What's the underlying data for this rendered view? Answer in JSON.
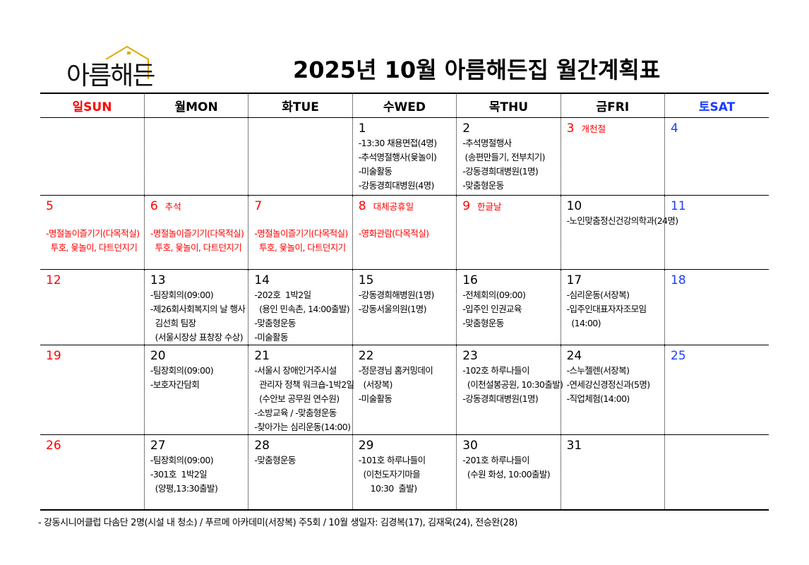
{
  "logo": {
    "text": "아름해든",
    "roof_color": "#e0a800"
  },
  "title": "2025년 10월 아름해든집 월간계획표",
  "colors": {
    "holiday": "#ff0000",
    "saturday": "#1a3cff",
    "normal": "#000000"
  },
  "weekdays": [
    {
      "label": "일SUN",
      "color": "red"
    },
    {
      "label": "월MON",
      "color": ""
    },
    {
      "label": "화TUE",
      "color": ""
    },
    {
      "label": "수WED",
      "color": ""
    },
    {
      "label": "목THU",
      "color": ""
    },
    {
      "label": "금FRI",
      "color": ""
    },
    {
      "label": "토SAT",
      "color": "blue"
    }
  ],
  "weeks": [
    [
      {
        "day": "",
        "events": []
      },
      {
        "day": "",
        "events": []
      },
      {
        "day": "",
        "events": []
      },
      {
        "day": "1",
        "events": [
          "-13:30 채용면접(4명)",
          "-추석명절행사(윷놀이)",
          "-미술활동",
          "-강동경희대병원(4명)"
        ]
      },
      {
        "day": "2",
        "events": [
          "-추석명절행사",
          " (송편만들기, 전부치기)",
          "-강동경희대병원(1명)",
          "-맞춤형운동"
        ]
      },
      {
        "day": "3",
        "note": "개천절",
        "color": "red",
        "events": []
      },
      {
        "day": "4",
        "color": "blue",
        "events": []
      }
    ],
    [
      {
        "day": "5",
        "color": "red",
        "gap": true,
        "events": [
          "-명절놀이즐기기(다목적실)",
          "  투호, 윷놀이, 다트던지기"
        ]
      },
      {
        "day": "6",
        "note": "추석",
        "color": "red",
        "gap": true,
        "events": [
          "-명절놀이즐기기(다목적실)",
          "  투호, 윷놀이, 다트던지기"
        ]
      },
      {
        "day": "7",
        "color": "red",
        "gap": true,
        "events": [
          "-명절놀이즐기기(다목적실)",
          "  투호, 윷놀이, 다트던지기"
        ]
      },
      {
        "day": "8",
        "note": "대체공휴일",
        "color": "red",
        "gap": true,
        "events": [
          "-영화관람(다목적실)"
        ]
      },
      {
        "day": "9",
        "note": "한글날",
        "color": "red",
        "events": []
      },
      {
        "day": "10",
        "events": [
          "-노인맞춤정신건강의학과(24명)"
        ]
      },
      {
        "day": "11",
        "color": "blue",
        "events": []
      }
    ],
    [
      {
        "day": "12",
        "color": "red",
        "events": []
      },
      {
        "day": "13",
        "events": [
          "-팀장회의(09:00)",
          "-제26회사회복지의 날 행사",
          "  김선희 팀장",
          "  (서울시장상 표창장 수상)"
        ]
      },
      {
        "day": "14",
        "events": [
          "-202호  1박2일",
          "  (용인 민속촌, 14:00출발)",
          "-맞춤형운동",
          "-미술활동"
        ]
      },
      {
        "day": "15",
        "events": [
          "-강동경희해병원(1명)",
          "-강동서울의원(1명)"
        ]
      },
      {
        "day": "16",
        "events": [
          "-전체회의(09:00)",
          "-입주인 인권교육",
          "-맞춤형운동"
        ]
      },
      {
        "day": "17",
        "events": [
          "-심리운동(서장복)",
          "-입주인대표자자조모임",
          "  (14:00)"
        ]
      },
      {
        "day": "18",
        "color": "blue",
        "events": []
      }
    ],
    [
      {
        "day": "19",
        "color": "red",
        "events": []
      },
      {
        "day": "20",
        "events": [
          "-팀장회의(09:00)",
          "-보호자간담회"
        ]
      },
      {
        "day": "21",
        "events": [
          "-서울시 장애인거주시설",
          "  관리자 정책 워크숍-1박2일",
          "  (수안보 공무원 연수원)",
          "-소방교육 / -맞춤형운동",
          "-찾아가는 심리운동(14:00)"
        ]
      },
      {
        "day": "22",
        "events": [
          "-정문경님 홈커밍데이",
          "  (서장복)",
          "-미술활동"
        ]
      },
      {
        "day": "23",
        "events": [
          "-102호 하루나들이",
          "  (이천설봉공원, 10:30출발)",
          "-강동경희대병원(1명)"
        ]
      },
      {
        "day": "24",
        "events": [
          "-스누젤렌(서장복)",
          "-연세강신경정신과(5명)",
          "-직업체험(14:00)"
        ]
      },
      {
        "day": "25",
        "color": "blue",
        "events": []
      }
    ],
    [
      {
        "day": "26",
        "color": "red",
        "events": []
      },
      {
        "day": "27",
        "events": [
          "-팀장회의(09:00)",
          "-301호  1박2일",
          "  (양평,13:30출발)"
        ]
      },
      {
        "day": "28",
        "events": [
          "-맞춤형운동"
        ]
      },
      {
        "day": "29",
        "events": [
          "-101호 하루나들이",
          "  (이천도자기마을",
          "     10:30  출발)"
        ]
      },
      {
        "day": "30",
        "events": [
          "-201호 하루나들이",
          "  (수원 화성, 10:00출발)"
        ]
      },
      {
        "day": "31",
        "events": []
      },
      {
        "day": "",
        "events": []
      }
    ]
  ],
  "footer": "- 강동시니어클럽 다솜단 2명(시설 내 청소) / 푸르메 아카데미(서장복) 주5회 / 10월 생일자: 김경복(17), 김재욱(24), 전승완(28)"
}
